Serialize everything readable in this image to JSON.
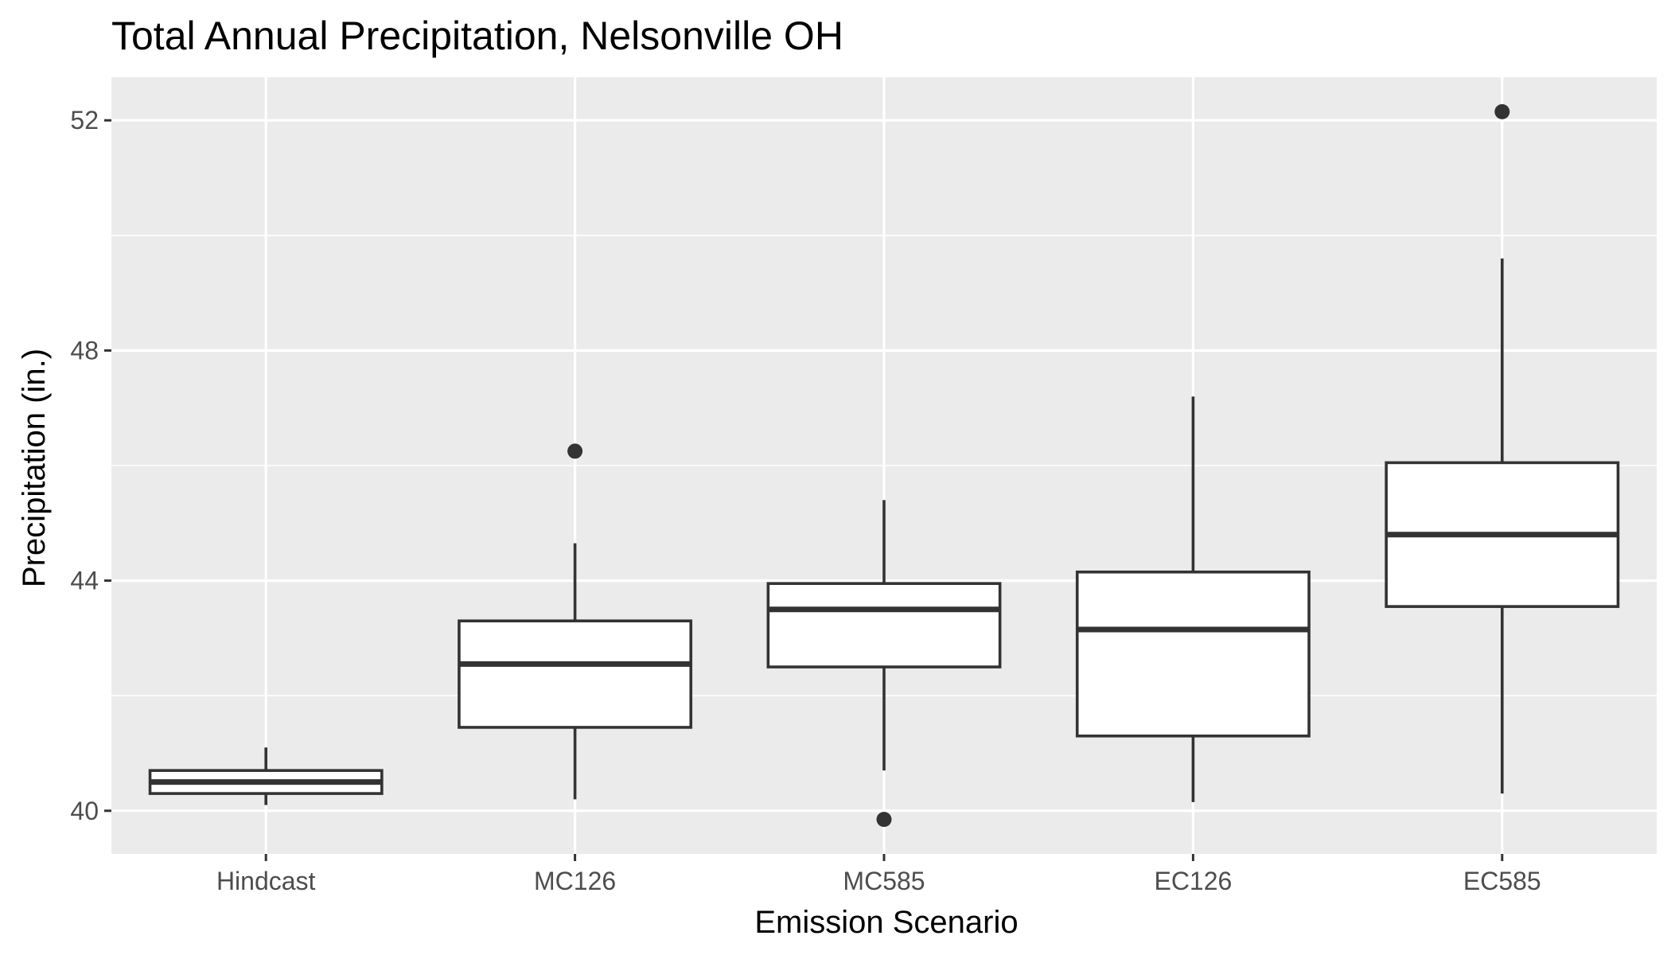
{
  "chart_data": {
    "type": "boxplot",
    "title": "Total Annual Precipitation, Nelsonville OH",
    "xlabel": "Emission Scenario",
    "ylabel": "Precipitation (in.)",
    "ylim": [
      39.25,
      52.75
    ],
    "yticks": [
      40,
      44,
      48,
      52
    ],
    "y_minor_gridlines": [
      42,
      46,
      50
    ],
    "grid": true,
    "legend": "none",
    "categories": [
      "Hindcast",
      "MC126",
      "MC585",
      "EC126",
      "EC585"
    ],
    "boxes": [
      {
        "category": "Hindcast",
        "whisker_low": 40.1,
        "q1": 40.3,
        "median": 40.5,
        "q3": 40.7,
        "whisker_high": 41.1,
        "outliers": []
      },
      {
        "category": "MC126",
        "whisker_low": 40.2,
        "q1": 41.45,
        "median": 42.55,
        "q3": 43.3,
        "whisker_high": 44.65,
        "outliers": [
          46.25
        ]
      },
      {
        "category": "MC585",
        "whisker_low": 40.7,
        "q1": 42.5,
        "median": 43.5,
        "q3": 43.95,
        "whisker_high": 45.4,
        "outliers": [
          39.85
        ]
      },
      {
        "category": "EC126",
        "whisker_low": 40.15,
        "q1": 41.3,
        "median": 43.15,
        "q3": 44.15,
        "whisker_high": 47.2,
        "outliers": []
      },
      {
        "category": "EC585",
        "whisker_low": 40.3,
        "q1": 43.55,
        "median": 44.8,
        "q3": 46.05,
        "whisker_high": 49.6,
        "outliers": [
          52.15
        ]
      }
    ],
    "colors": {
      "panel_background": "#ebebeb",
      "gridline": "#ffffff",
      "box_fill": "#ffffff",
      "box_stroke": "#333333",
      "tick_text": "#4d4d4d",
      "tick_mark": "#333333"
    }
  }
}
